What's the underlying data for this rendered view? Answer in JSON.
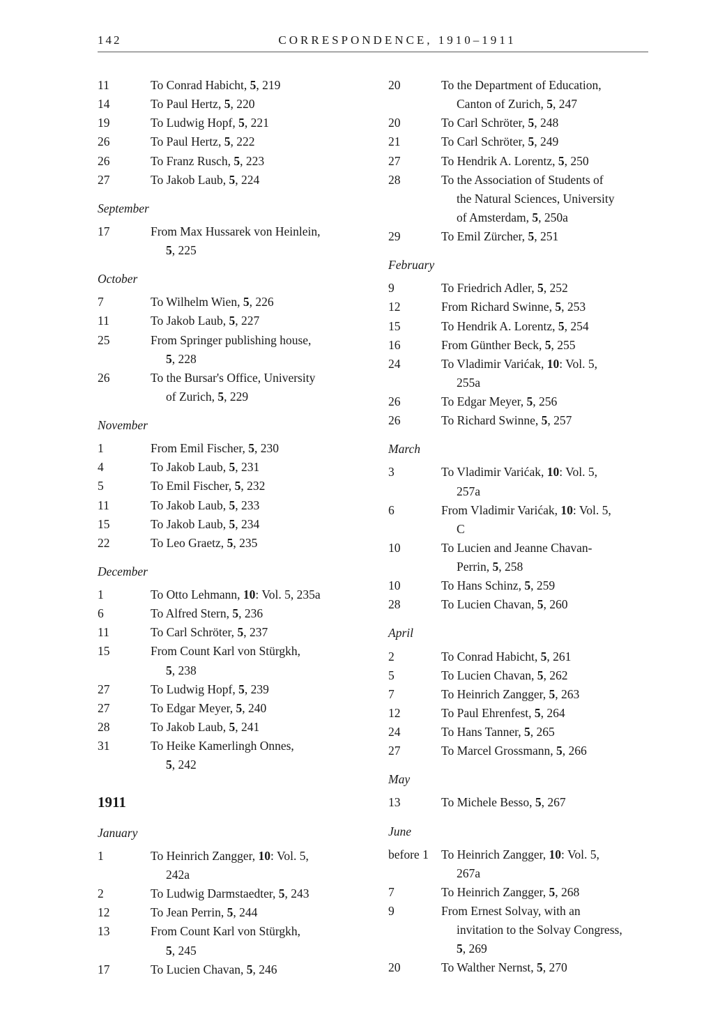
{
  "header": {
    "page_number": "142",
    "title": "CORRESPONDENCE, 1910–1911"
  },
  "left": [
    {
      "t": "entry",
      "day": "11",
      "lines": [
        "To Conrad Habicht, <b>5</b>, 219"
      ]
    },
    {
      "t": "entry",
      "day": "14",
      "lines": [
        "To Paul Hertz, <b>5</b>, 220"
      ]
    },
    {
      "t": "entry",
      "day": "19",
      "lines": [
        "To Ludwig Hopf, <b>5</b>, 221"
      ]
    },
    {
      "t": "entry",
      "day": "26",
      "lines": [
        "To Paul Hertz, <b>5</b>, 222"
      ]
    },
    {
      "t": "entry",
      "day": "26",
      "lines": [
        "To Franz Rusch, <b>5</b>, 223"
      ]
    },
    {
      "t": "entry",
      "day": "27",
      "lines": [
        "To Jakob Laub, <b>5</b>, 224"
      ]
    },
    {
      "t": "month",
      "label": "September"
    },
    {
      "t": "entry",
      "day": "17",
      "lines": [
        "From Max Hussarek von Heinlein,",
        "<b>5</b>, 225"
      ]
    },
    {
      "t": "month",
      "label": "October"
    },
    {
      "t": "entry",
      "day": "7",
      "lines": [
        "To Wilhelm Wien, <b>5</b>, 226"
      ]
    },
    {
      "t": "entry",
      "day": "11",
      "lines": [
        "To Jakob Laub, <b>5</b>, 227"
      ]
    },
    {
      "t": "entry",
      "day": "25",
      "lines": [
        "From Springer publishing house,",
        "<b>5</b>, 228"
      ]
    },
    {
      "t": "entry",
      "day": "26",
      "lines": [
        "To the Bursar's Office, University",
        "of Zurich, <b>5</b>, 229"
      ]
    },
    {
      "t": "month",
      "label": "November"
    },
    {
      "t": "entry",
      "day": "1",
      "lines": [
        "From Emil Fischer, <b>5</b>, 230"
      ]
    },
    {
      "t": "entry",
      "day": "4",
      "lines": [
        "To Jakob Laub, <b>5</b>, 231"
      ]
    },
    {
      "t": "entry",
      "day": "5",
      "lines": [
        "To Emil Fischer, <b>5</b>, 232"
      ]
    },
    {
      "t": "entry",
      "day": "11",
      "lines": [
        "To Jakob Laub, <b>5</b>, 233"
      ]
    },
    {
      "t": "entry",
      "day": "15",
      "lines": [
        "To Jakob Laub, <b>5</b>, 234"
      ]
    },
    {
      "t": "entry",
      "day": "22",
      "lines": [
        "To Leo Graetz, <b>5</b>, 235"
      ]
    },
    {
      "t": "month",
      "label": "December"
    },
    {
      "t": "entry",
      "day": "1",
      "lines": [
        "To Otto Lehmann, <b>10</b>: Vol. 5, 235a"
      ]
    },
    {
      "t": "entry",
      "day": "6",
      "lines": [
        "To Alfred Stern, <b>5</b>, 236"
      ]
    },
    {
      "t": "entry",
      "day": "11",
      "lines": [
        "To Carl Schröter, <b>5</b>, 237"
      ]
    },
    {
      "t": "entry",
      "day": "15",
      "lines": [
        "From Count Karl von Stürgkh,",
        "<b>5</b>, 238"
      ]
    },
    {
      "t": "entry",
      "day": "27",
      "lines": [
        "To Ludwig Hopf, <b>5</b>, 239"
      ]
    },
    {
      "t": "entry",
      "day": "27",
      "lines": [
        "To Edgar Meyer, <b>5</b>, 240"
      ]
    },
    {
      "t": "entry",
      "day": "28",
      "lines": [
        "To Jakob Laub, <b>5</b>, 241"
      ]
    },
    {
      "t": "entry",
      "day": "31",
      "lines": [
        "To Heike Kamerlingh Onnes,",
        "<b>5</b>, 242"
      ]
    },
    {
      "t": "year",
      "label": "1911"
    },
    {
      "t": "month",
      "label": "January"
    },
    {
      "t": "entry",
      "day": "1",
      "lines": [
        "To Heinrich Zangger, <b>10</b>: Vol. 5,",
        "242a"
      ]
    },
    {
      "t": "entry",
      "day": "2",
      "lines": [
        "To Ludwig Darmstaedter, <b>5</b>, 243"
      ]
    },
    {
      "t": "entry",
      "day": "12",
      "lines": [
        "To Jean Perrin, <b>5</b>, 244"
      ]
    },
    {
      "t": "entry",
      "day": "13",
      "lines": [
        "From Count Karl von Stürgkh,",
        "<b>5</b>, 245"
      ]
    },
    {
      "t": "entry",
      "day": "17",
      "lines": [
        "To Lucien Chavan, <b>5</b>, 246"
      ]
    }
  ],
  "right": [
    {
      "t": "entry",
      "day": "20",
      "lines": [
        "To the Department of Education,",
        "Canton of Zurich, <b>5</b>, 247"
      ]
    },
    {
      "t": "entry",
      "day": "20",
      "lines": [
        "To Carl Schröter, <b>5</b>, 248"
      ]
    },
    {
      "t": "entry",
      "day": "21",
      "lines": [
        "To Carl Schröter, <b>5</b>, 249"
      ]
    },
    {
      "t": "entry",
      "day": "27",
      "lines": [
        "To Hendrik A. Lorentz, <b>5</b>, 250"
      ]
    },
    {
      "t": "entry",
      "day": "28",
      "lines": [
        "To the Association of Students of",
        "the Natural Sciences, University",
        "of Amsterdam, <b>5</b>, 250a"
      ]
    },
    {
      "t": "entry",
      "day": "29",
      "lines": [
        "To Emil Zürcher, <b>5</b>, 251"
      ]
    },
    {
      "t": "month",
      "label": "February"
    },
    {
      "t": "entry",
      "day": "9",
      "lines": [
        "To Friedrich Adler, <b>5</b>, 252"
      ]
    },
    {
      "t": "entry",
      "day": "12",
      "lines": [
        "From Richard Swinne, <b>5</b>, 253"
      ]
    },
    {
      "t": "entry",
      "day": "15",
      "lines": [
        "To Hendrik A. Lorentz, <b>5</b>, 254"
      ]
    },
    {
      "t": "entry",
      "day": "16",
      "lines": [
        "From Günther Beck, <b>5</b>, 255"
      ]
    },
    {
      "t": "entry",
      "day": "24",
      "lines": [
        "To Vladimir Varićak, <b>10</b>: Vol. 5,",
        "255a"
      ]
    },
    {
      "t": "entry",
      "day": "26",
      "lines": [
        "To Edgar Meyer, <b>5</b>, 256"
      ]
    },
    {
      "t": "entry",
      "day": "26",
      "lines": [
        "To Richard Swinne, <b>5</b>, 257"
      ]
    },
    {
      "t": "month",
      "label": "March"
    },
    {
      "t": "entry",
      "day": "3",
      "lines": [
        "To Vladimir Varićak, <b>10</b>: Vol. 5,",
        "257a"
      ]
    },
    {
      "t": "entry",
      "day": "6",
      "lines": [
        "From Vladimir Varićak, <b>10</b>: Vol. 5,",
        "C"
      ]
    },
    {
      "t": "entry",
      "day": "10",
      "lines": [
        "To Lucien and Jeanne Chavan-",
        "Perrin, <b>5</b>, 258"
      ]
    },
    {
      "t": "entry",
      "day": "10",
      "lines": [
        "To Hans Schinz, <b>5</b>, 259"
      ]
    },
    {
      "t": "entry",
      "day": "28",
      "lines": [
        "To Lucien Chavan, <b>5</b>, 260"
      ]
    },
    {
      "t": "month",
      "label": "April"
    },
    {
      "t": "entry",
      "day": "2",
      "lines": [
        "To Conrad Habicht, <b>5</b>, 261"
      ]
    },
    {
      "t": "entry",
      "day": "5",
      "lines": [
        "To Lucien Chavan, <b>5</b>, 262"
      ]
    },
    {
      "t": "entry",
      "day": "7",
      "lines": [
        "To Heinrich Zangger, <b>5</b>, 263"
      ]
    },
    {
      "t": "entry",
      "day": "12",
      "lines": [
        "To Paul Ehrenfest, <b>5</b>, 264"
      ]
    },
    {
      "t": "entry",
      "day": "24",
      "lines": [
        "To Hans Tanner, <b>5</b>, 265"
      ]
    },
    {
      "t": "entry",
      "day": "27",
      "lines": [
        "To Marcel Grossmann, <b>5</b>, 266"
      ]
    },
    {
      "t": "month",
      "label": "May"
    },
    {
      "t": "entry",
      "day": "13",
      "lines": [
        "To Michele Besso, <b>5</b>, 267"
      ]
    },
    {
      "t": "month",
      "label": "June"
    },
    {
      "t": "entry",
      "day": "before 1",
      "lines": [
        "To Heinrich Zangger, <b>10</b>: Vol. 5,",
        "267a"
      ]
    },
    {
      "t": "entry",
      "day": "7",
      "lines": [
        "To Heinrich Zangger, <b>5</b>, 268"
      ]
    },
    {
      "t": "entry",
      "day": "9",
      "lines": [
        "From Ernest Solvay, with an",
        "invitation to the Solvay Congress,",
        "<b>5</b>, 269"
      ]
    },
    {
      "t": "entry",
      "day": "20",
      "lines": [
        "To Walther Nernst, <b>5</b>, 270"
      ]
    }
  ]
}
